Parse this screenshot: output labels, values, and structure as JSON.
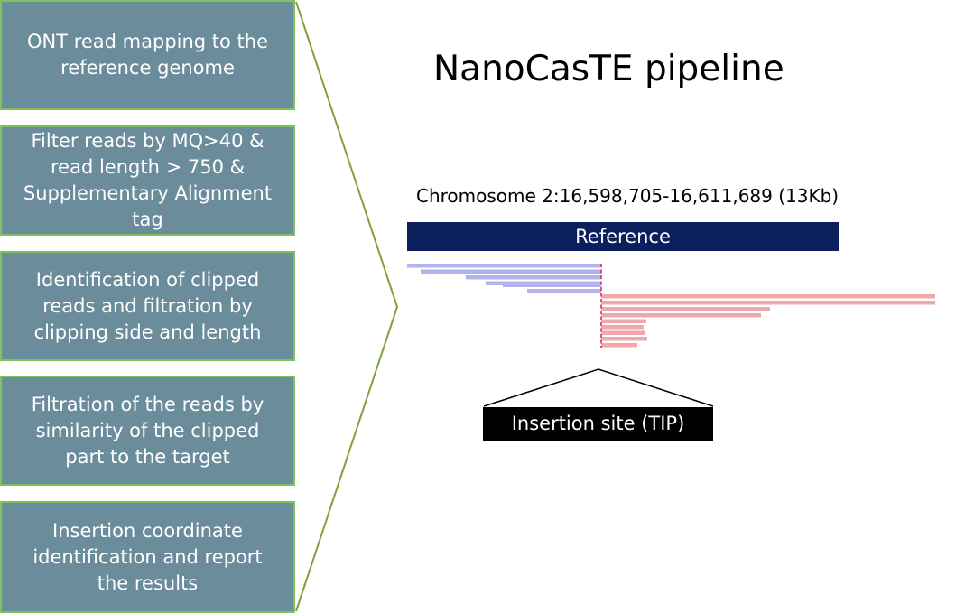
{
  "pipeline_steps": [
    {
      "label": "ONT read mapping to the reference genome"
    },
    {
      "label": "Filter reads by MQ>40 & read length > 750 & Supplementary Alignment tag"
    },
    {
      "label": "Identification of clipped reads and filtration by clipping side and length"
    },
    {
      "label": "Filtration of the reads by similarity of the clipped part to the target"
    },
    {
      "label": "Insertion coordinate identification and report the results"
    }
  ],
  "title": "NanoCasTE pipeline",
  "locus": "Chromosome 2:16,598,705-16,611,689 (13Kb)",
  "reference_label": "Reference",
  "insertion_label": "Insertion site (TIP)",
  "colors": {
    "step_fill": "#6b8c9b",
    "step_border": "#7cc35a",
    "chevron_line": "#7ea23a",
    "reference_fill": "#0b1f5c",
    "left_clipped_reads": "#b3b3ee",
    "right_clipped_reads": "#f0a8ac",
    "clip_mark": "#d0306a"
  }
}
